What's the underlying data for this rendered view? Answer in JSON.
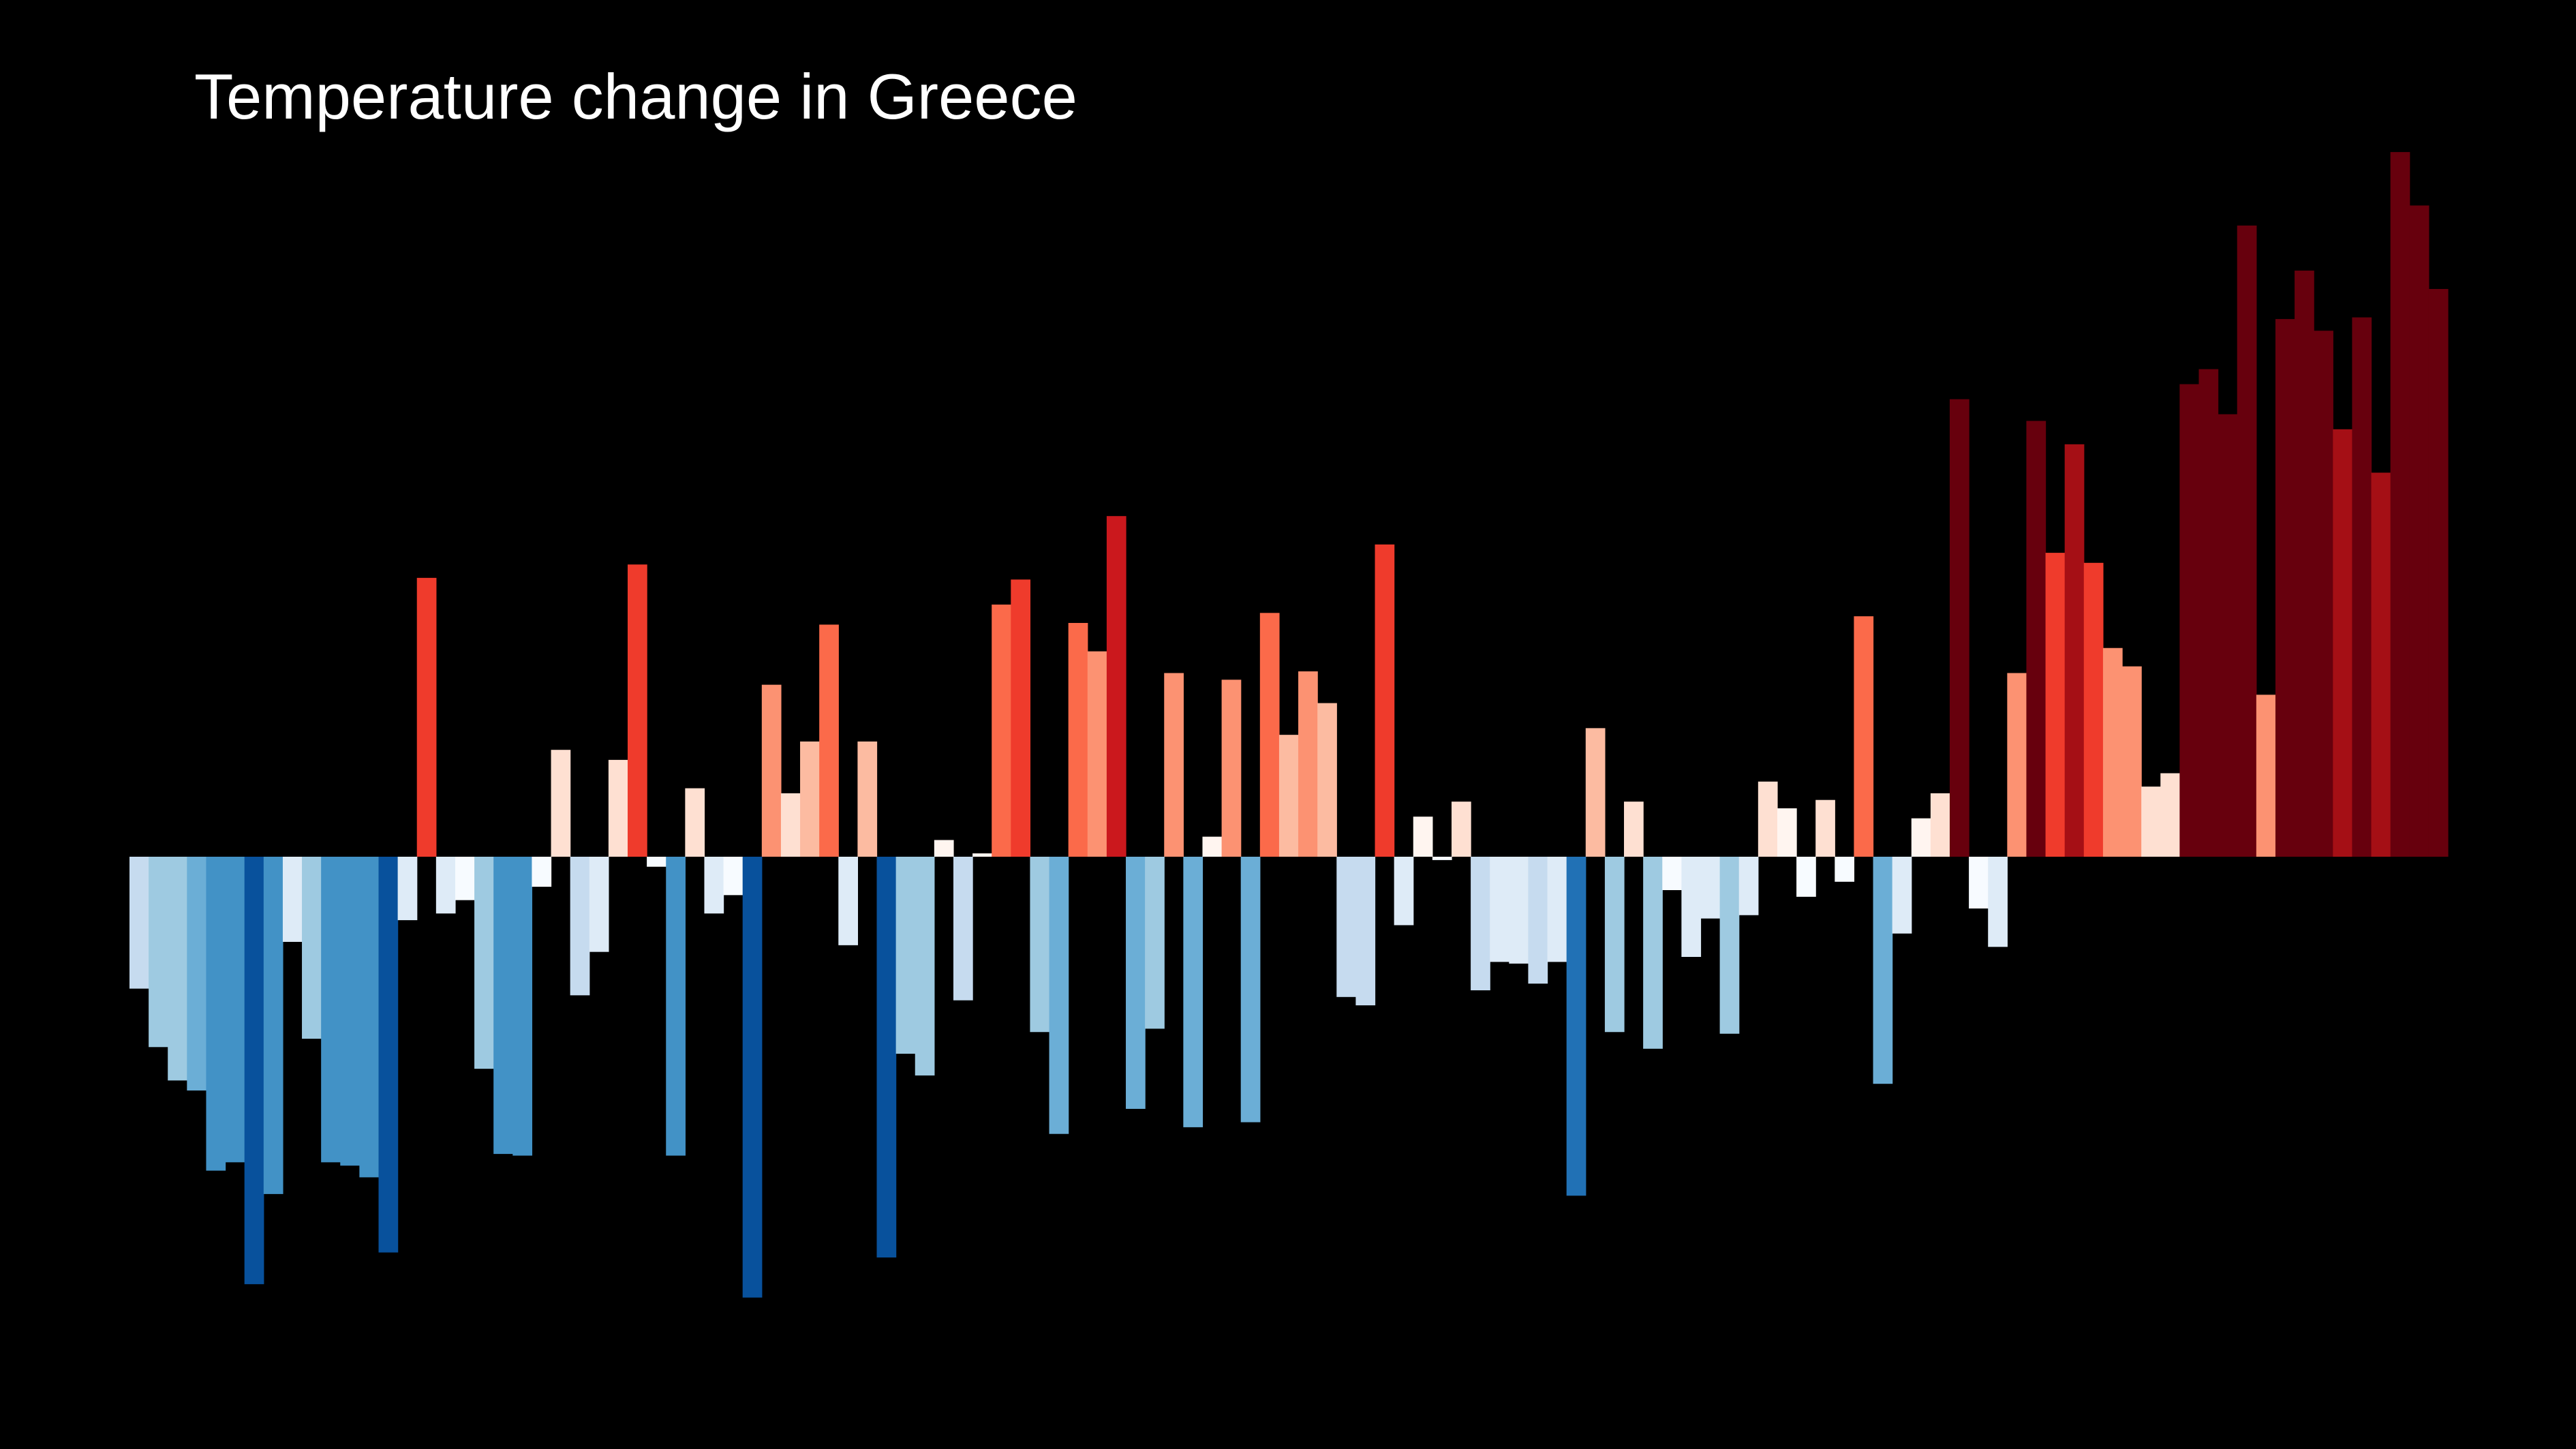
{
  "chart_data": {
    "type": "bar",
    "title": "Temperature change in Greece",
    "xlabel": "",
    "ylabel": "",
    "grid": false,
    "legend": "none",
    "zero_baseline": true,
    "colors": {
      "background": "#000000",
      "cold_scale": [
        "#f7fbff",
        "#deebf7",
        "#c6dbef",
        "#9ecae1",
        "#6baed6",
        "#4292c6",
        "#2171b5",
        "#08519c"
      ],
      "warm_scale": [
        "#fff5f0",
        "#fee0d2",
        "#fcbba1",
        "#fc9272",
        "#fb6a4a",
        "#ef3b2c",
        "#cb181d",
        "#a50f15",
        "#67000d"
      ]
    },
    "values": [
      -0.79,
      -1.14,
      -1.34,
      -1.4,
      -1.88,
      -1.83,
      -2.56,
      -2.02,
      -0.51,
      -1.09,
      -1.83,
      -1.85,
      -1.92,
      -2.37,
      -0.38,
      1.67,
      -0.34,
      -0.26,
      -1.27,
      -1.78,
      -1.79,
      -0.18,
      0.64,
      -0.83,
      -0.57,
      0.58,
      1.75,
      -0.06,
      -1.79,
      0.41,
      -0.34,
      -0.23,
      -2.64,
      1.03,
      0.38,
      0.69,
      1.39,
      -0.53,
      0.69,
      -2.4,
      -1.18,
      -1.31,
      0.1,
      -0.86,
      0.02,
      1.51,
      1.66,
      -1.05,
      -1.66,
      1.4,
      1.23,
      2.04,
      -1.51,
      -1.03,
      1.1,
      -1.62,
      0.12,
      1.06,
      -1.59,
      1.46,
      0.73,
      1.11,
      0.92,
      -0.84,
      -0.89,
      1.87,
      -0.41,
      0.24,
      -0.02,
      0.33,
      -0.8,
      -0.63,
      -0.64,
      -0.76,
      -0.63,
      -2.03,
      0.77,
      -1.05,
      0.33,
      -1.15,
      -0.2,
      -0.6,
      -0.37,
      -1.06,
      -0.35,
      0.45,
      0.29,
      -0.24,
      0.34,
      -0.15,
      1.44,
      -1.36,
      -0.46,
      0.23,
      0.38,
      2.74,
      -0.31,
      -0.54,
      1.1,
      2.61,
      1.82,
      2.47,
      1.76,
      1.25,
      1.14,
      0.42,
      0.5,
      2.83,
      2.92,
      2.65,
      3.78,
      0.97,
      3.22,
      3.51,
      3.15,
      2.56,
      3.23,
      2.3,
      4.22,
      3.9,
      3.4
    ]
  }
}
